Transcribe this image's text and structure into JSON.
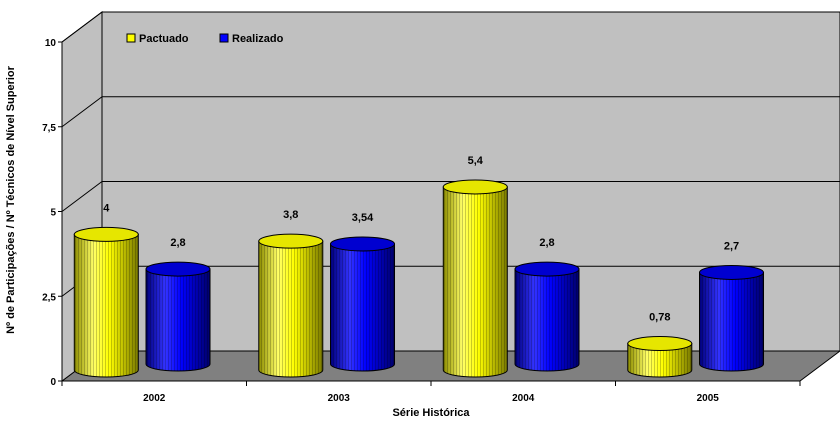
{
  "chart_data": {
    "type": "bar",
    "title": "",
    "xlabel": "Série Histórica",
    "ylabel": "Nº de Participações / Nº Técnicos de Nível Superior",
    "ylim": [
      0,
      10
    ],
    "yticks": [
      "0",
      "2,5",
      "5",
      "7,5",
      "10"
    ],
    "ytick_values": [
      0,
      2.5,
      5,
      7.5,
      10
    ],
    "categories": [
      "2002",
      "2003",
      "2004",
      "2005"
    ],
    "series": [
      {
        "name": "Pactuado",
        "values": [
          4,
          3.8,
          5.4,
          0.78
        ],
        "labels": [
          "4",
          "3,8",
          "5,4",
          "0,78"
        ],
        "color": "#FFFF00"
      },
      {
        "name": "Realizado",
        "values": [
          2.8,
          3.54,
          2.8,
          2.7
        ],
        "labels": [
          "2,8",
          "3,54",
          "2,8",
          "2,7"
        ],
        "color": "#0000FF"
      }
    ],
    "grid": true,
    "legend": "top-left",
    "style": "3d-cylinder"
  }
}
